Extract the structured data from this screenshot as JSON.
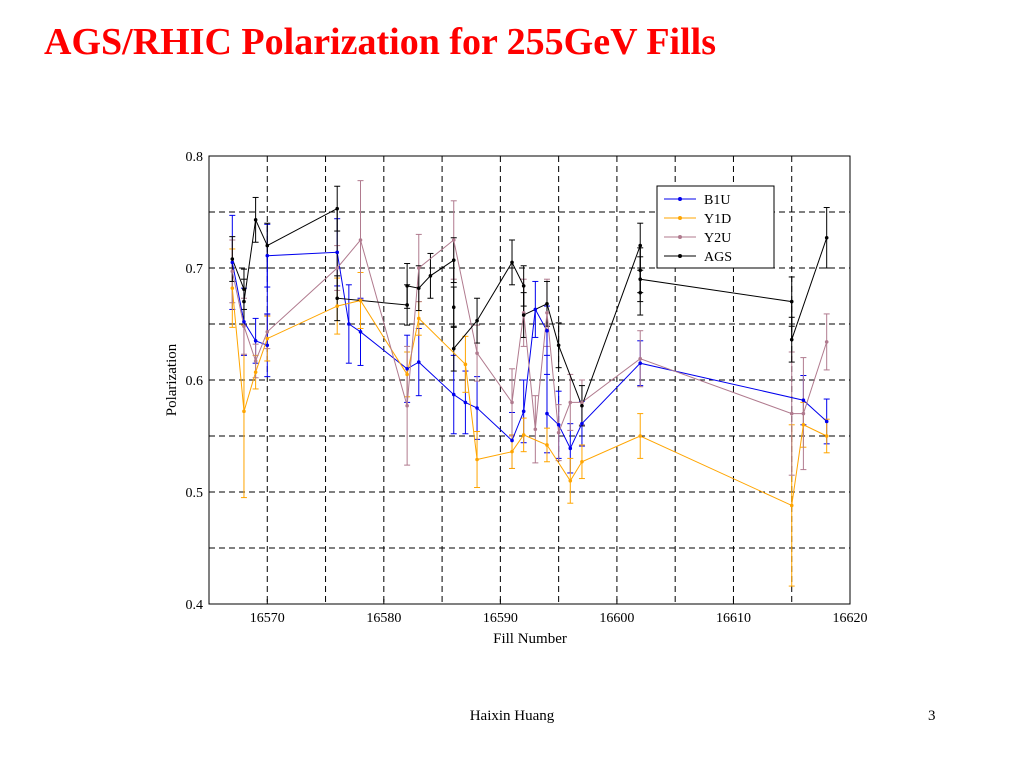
{
  "slide": {
    "title": "AGS/RHIC Polarization for 255GeV Fills",
    "footer": "Haixin Huang",
    "page_number": "3"
  },
  "chart_data": {
    "type": "line",
    "title": "",
    "xlabel": "Fill Number",
    "ylabel": "Polarization",
    "xlim": [
      16565,
      16620
    ],
    "ylim": [
      0.4,
      0.8
    ],
    "xticks": [
      16570,
      16580,
      16590,
      16600,
      16610,
      16620
    ],
    "yticks": [
      0.4,
      0.5,
      0.6,
      0.7,
      0.8
    ],
    "ytick_labels": [
      "0.4",
      "0.5",
      "0.6",
      "0.7",
      "0.8"
    ],
    "grid": true,
    "legend_position": "top-right",
    "series": [
      {
        "name": "B1U",
        "color": "#0000ee",
        "points": [
          {
            "x": 16567,
            "y": 0.705,
            "err": 0.042
          },
          {
            "x": 16568,
            "y": 0.652,
            "err": 0.03
          },
          {
            "x": 16569,
            "y": 0.635,
            "err": 0.02
          },
          {
            "x": 16570,
            "y": 0.631,
            "err": 0.028
          },
          {
            "x": 16570,
            "y": 0.711,
            "err": 0.028
          },
          {
            "x": 16576,
            "y": 0.714,
            "err": 0.03
          },
          {
            "x": 16577,
            "y": 0.65,
            "err": 0.035
          },
          {
            "x": 16578,
            "y": 0.643,
            "err": 0.03
          },
          {
            "x": 16582,
            "y": 0.61,
            "err": 0.03
          },
          {
            "x": 16583,
            "y": 0.616,
            "err": 0.03
          },
          {
            "x": 16586,
            "y": 0.587,
            "err": 0.035
          },
          {
            "x": 16587,
            "y": 0.58,
            "err": 0.028
          },
          {
            "x": 16588,
            "y": 0.575,
            "err": 0.028
          },
          {
            "x": 16591,
            "y": 0.546,
            "err": 0.025
          },
          {
            "x": 16592,
            "y": 0.572,
            "err": 0.028
          },
          {
            "x": 16593,
            "y": 0.663,
            "err": 0.025
          },
          {
            "x": 16594,
            "y": 0.644,
            "err": 0.022
          },
          {
            "x": 16594,
            "y": 0.57,
            "err": 0.035
          },
          {
            "x": 16595,
            "y": 0.56,
            "err": 0.03
          },
          {
            "x": 16596,
            "y": 0.539,
            "err": 0.022
          },
          {
            "x": 16597,
            "y": 0.561,
            "err": 0.02
          },
          {
            "x": 16602,
            "y": 0.615,
            "err": 0.02
          },
          {
            "x": 16616,
            "y": 0.582,
            "err": 0.022
          },
          {
            "x": 16618,
            "y": 0.563,
            "err": 0.02
          }
        ]
      },
      {
        "name": "Y1D",
        "color": "#ffa500",
        "points": [
          {
            "x": 16567,
            "y": 0.682,
            "err": 0.035
          },
          {
            "x": 16568,
            "y": 0.572,
            "err": 0.077
          },
          {
            "x": 16569,
            "y": 0.607,
            "err": 0.015
          },
          {
            "x": 16570,
            "y": 0.637,
            "err": 0.02
          },
          {
            "x": 16576,
            "y": 0.666,
            "err": 0.025
          },
          {
            "x": 16578,
            "y": 0.671,
            "err": 0.025
          },
          {
            "x": 16582,
            "y": 0.605,
            "err": 0.02
          },
          {
            "x": 16583,
            "y": 0.655,
            "err": 0.015
          },
          {
            "x": 16587,
            "y": 0.614,
            "err": 0.025
          },
          {
            "x": 16588,
            "y": 0.529,
            "err": 0.025
          },
          {
            "x": 16591,
            "y": 0.536,
            "err": 0.015
          },
          {
            "x": 16592,
            "y": 0.551,
            "err": 0.015
          },
          {
            "x": 16594,
            "y": 0.542,
            "err": 0.015
          },
          {
            "x": 16596,
            "y": 0.51,
            "err": 0.02
          },
          {
            "x": 16597,
            "y": 0.527,
            "err": 0.015
          },
          {
            "x": 16602,
            "y": 0.55,
            "err": 0.02
          },
          {
            "x": 16615,
            "y": 0.488,
            "err": 0.072
          },
          {
            "x": 16616,
            "y": 0.56,
            "err": 0.02
          },
          {
            "x": 16618,
            "y": 0.55,
            "err": 0.015
          }
        ]
      },
      {
        "name": "Y2U",
        "color": "#b07a8e",
        "points": [
          {
            "x": 16567,
            "y": 0.697,
            "err": 0.028
          },
          {
            "x": 16568,
            "y": 0.648,
            "err": 0.025
          },
          {
            "x": 16569,
            "y": 0.617,
            "err": 0.015
          },
          {
            "x": 16570,
            "y": 0.643,
            "err": 0.015
          },
          {
            "x": 16576,
            "y": 0.7,
            "err": 0.02
          },
          {
            "x": 16578,
            "y": 0.725,
            "err": 0.053
          },
          {
            "x": 16582,
            "y": 0.577,
            "err": 0.053
          },
          {
            "x": 16583,
            "y": 0.7,
            "err": 0.03
          },
          {
            "x": 16586,
            "y": 0.725,
            "err": 0.035
          },
          {
            "x": 16588,
            "y": 0.624,
            "err": 0.025
          },
          {
            "x": 16591,
            "y": 0.58,
            "err": 0.03
          },
          {
            "x": 16592,
            "y": 0.66,
            "err": 0.03
          },
          {
            "x": 16593,
            "y": 0.556,
            "err": 0.03
          },
          {
            "x": 16594,
            "y": 0.66,
            "err": 0.03
          },
          {
            "x": 16595,
            "y": 0.553,
            "err": 0.025
          },
          {
            "x": 16596,
            "y": 0.58,
            "err": 0.025
          },
          {
            "x": 16597,
            "y": 0.58,
            "err": 0.02
          },
          {
            "x": 16602,
            "y": 0.619,
            "err": 0.025
          },
          {
            "x": 16615,
            "y": 0.57,
            "err": 0.055
          },
          {
            "x": 16616,
            "y": 0.57,
            "err": 0.05
          },
          {
            "x": 16618,
            "y": 0.634,
            "err": 0.025
          }
        ]
      },
      {
        "name": "AGS",
        "color": "#000000",
        "points": [
          {
            "x": 16567,
            "y": 0.708,
            "err": 0.02
          },
          {
            "x": 16568,
            "y": 0.681,
            "err": 0.018
          },
          {
            "x": 16568,
            "y": 0.67,
            "err": 0.02
          },
          {
            "x": 16569,
            "y": 0.743,
            "err": 0.02
          },
          {
            "x": 16570,
            "y": 0.72,
            "err": 0.02
          },
          {
            "x": 16576,
            "y": 0.753,
            "err": 0.02
          },
          {
            "x": 16576,
            "y": 0.673,
            "err": 0.02
          },
          {
            "x": 16582,
            "y": 0.667,
            "err": 0.018
          },
          {
            "x": 16582,
            "y": 0.684,
            "err": 0.02
          },
          {
            "x": 16583,
            "y": 0.682,
            "err": 0.02
          },
          {
            "x": 16584,
            "y": 0.693,
            "err": 0.02
          },
          {
            "x": 16586,
            "y": 0.707,
            "err": 0.02
          },
          {
            "x": 16586,
            "y": 0.665,
            "err": 0.018
          },
          {
            "x": 16586,
            "y": 0.628,
            "err": 0.02
          },
          {
            "x": 16588,
            "y": 0.653,
            "err": 0.02
          },
          {
            "x": 16591,
            "y": 0.705,
            "err": 0.02
          },
          {
            "x": 16592,
            "y": 0.684,
            "err": 0.018
          },
          {
            "x": 16592,
            "y": 0.658,
            "err": 0.02
          },
          {
            "x": 16594,
            "y": 0.668,
            "err": 0.02
          },
          {
            "x": 16595,
            "y": 0.631,
            "err": 0.02
          },
          {
            "x": 16597,
            "y": 0.577,
            "err": 0.018
          },
          {
            "x": 16602,
            "y": 0.72,
            "err": 0.02
          },
          {
            "x": 16602,
            "y": 0.698,
            "err": 0.02
          },
          {
            "x": 16602,
            "y": 0.678,
            "err": 0.02
          },
          {
            "x": 16602,
            "y": 0.69,
            "err": 0.02
          },
          {
            "x": 16615,
            "y": 0.67,
            "err": 0.022
          },
          {
            "x": 16615,
            "y": 0.636,
            "err": 0.02
          },
          {
            "x": 16618,
            "y": 0.727,
            "err": 0.027
          }
        ]
      }
    ]
  }
}
